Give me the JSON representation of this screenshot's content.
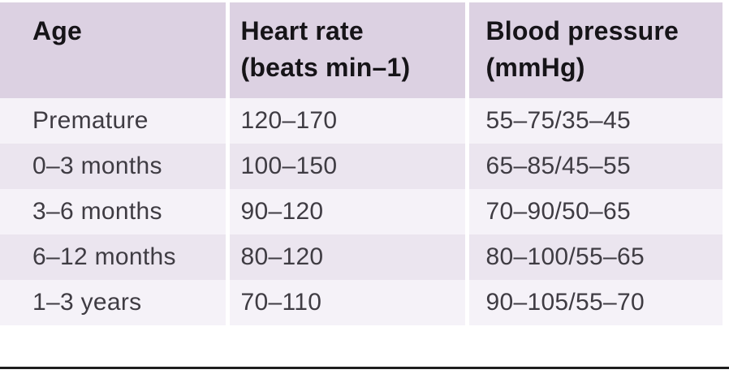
{
  "table": {
    "columns": [
      {
        "label": "Age",
        "sublabel": ""
      },
      {
        "label": "Heart rate",
        "sublabel": "(beats min–1)"
      },
      {
        "label": "Blood pressure",
        "sublabel": "(mmHg)"
      }
    ],
    "rows": [
      {
        "age": "Premature",
        "heart_rate": "120–170",
        "blood_pressure": "55–75/35–45"
      },
      {
        "age": "0–3 months",
        "heart_rate": "100–150",
        "blood_pressure": "65–85/45–55"
      },
      {
        "age": "3–6 months",
        "heart_rate": "90–120",
        "blood_pressure": "70–90/50–65"
      },
      {
        "age": "6–12 months",
        "heart_rate": "80–120",
        "blood_pressure": "80–100/55–65"
      },
      {
        "age": "1–3 years",
        "heart_rate": "70–110",
        "blood_pressure": "90–105/55–70"
      }
    ]
  },
  "colors": {
    "header_bg": "#dcd1e2",
    "row_light": "#f5f2f8",
    "row_dark": "#ebe5ef",
    "header_text": "#161418",
    "body_text": "#3f3c43",
    "bottom_rule": "#1e1e1e",
    "separator": "#ffffff"
  }
}
